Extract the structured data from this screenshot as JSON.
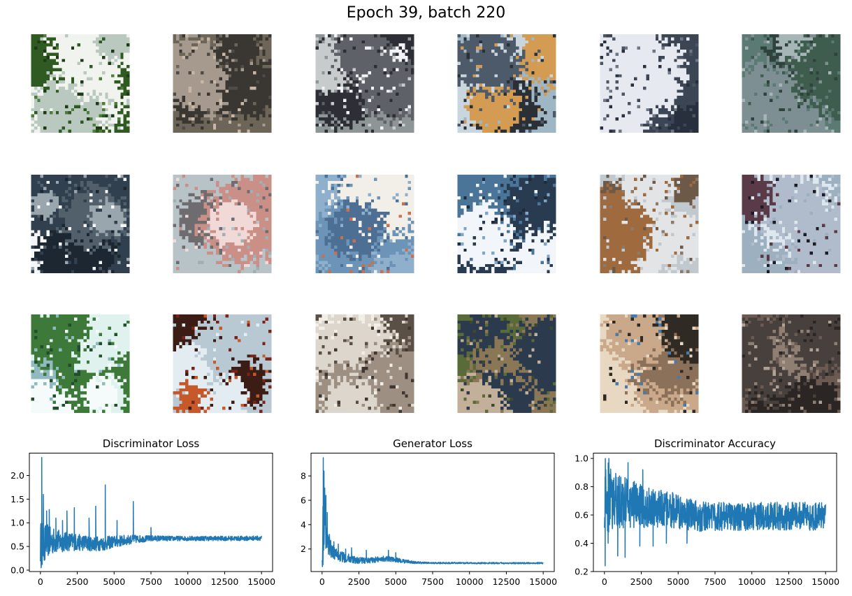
{
  "figure": {
    "title": "Epoch 39, batch 220",
    "grid": {
      "rows": 3,
      "cols": 6,
      "samples": [
        {
          "palette": [
            "#2f5a22",
            "#f1f4ee",
            "#4e7d3a",
            "#b9c9c0",
            "#1f3a17"
          ]
        },
        {
          "palette": [
            "#6d6557",
            "#3a3732",
            "#a59a8d",
            "#4f4c47",
            "#c8b7a5"
          ]
        },
        {
          "palette": [
            "#8e9597",
            "#f3f3f7",
            "#2e2f36",
            "#5f6168",
            "#c7cbcc"
          ]
        },
        {
          "palette": [
            "#9fb6c4",
            "#4c5a69",
            "#c9d6dd",
            "#2b3037",
            "#d39c52"
          ]
        },
        {
          "palette": [
            "#3b4554",
            "#27303c",
            "#6d7786",
            "#e6e9ef",
            "#4b5563"
          ]
        },
        {
          "palette": [
            "#5b7a73",
            "#3e5d4e",
            "#a6b6b7",
            "#7d8f93",
            "#2f433c"
          ]
        },
        {
          "palette": [
            "#30404e",
            "#f4f6f8",
            "#52606c",
            "#9aa6ae",
            "#1d2731"
          ]
        },
        {
          "palette": [
            "#b7c3c6",
            "#a1aeb2",
            "#f1d9d8",
            "#6f6c6f",
            "#ca8f86"
          ]
        },
        {
          "palette": [
            "#8fb0cc",
            "#6c94b8",
            "#f2efe9",
            "#c9704f",
            "#4c6f93"
          ]
        },
        {
          "palette": [
            "#4a7599",
            "#283b51",
            "#f2f5f9",
            "#7fa6c7",
            "#1f2b3a"
          ]
        },
        {
          "palette": [
            "#c1c9cf",
            "#8d7a69",
            "#6d5948",
            "#e2e4e6",
            "#a06a3f"
          ]
        },
        {
          "palette": [
            "#9cb0c0",
            "#1b1c25",
            "#b0bccb",
            "#dfe7ee",
            "#5a3a46"
          ]
        },
        {
          "palette": [
            "#3d7a3a",
            "#dff2ee",
            "#214f2b",
            "#90b9c0",
            "#f5fbfb"
          ]
        },
        {
          "palette": [
            "#b8c9d3",
            "#7a2418",
            "#e3ecf0",
            "#c6582a",
            "#3c1d16"
          ]
        },
        {
          "palette": [
            "#5b5045",
            "#ddd6cd",
            "#3f3730",
            "#9d8f82",
            "#f2eee8"
          ]
        },
        {
          "palette": [
            "#5a6b3a",
            "#8a7755",
            "#3f4a2c",
            "#c2b09a",
            "#2c3a4e"
          ]
        },
        {
          "palette": [
            "#e8d8c2",
            "#2f2a24",
            "#c9a98a",
            "#4a7aa8",
            "#8b7159"
          ]
        },
        {
          "palette": [
            "#6a5a52",
            "#2b2624",
            "#8f7f73",
            "#47403c",
            "#b0a195"
          ]
        }
      ]
    }
  },
  "chart_data": [
    {
      "type": "line",
      "title": "Discriminator Loss",
      "color": "#1f77b4",
      "xlim": [
        -750,
        15750
      ],
      "ylim": [
        -0.03,
        2.48
      ],
      "xticks": [
        0,
        2500,
        5000,
        7500,
        10000,
        12500,
        15000
      ],
      "xtick_labels": [
        "0",
        "2500",
        "5000",
        "7500",
        "10000",
        "12500",
        "15000"
      ],
      "yticks": [
        0.0,
        0.5,
        1.0,
        1.5,
        2.0
      ],
      "ytick_labels": [
        "0.0",
        "0.5",
        "1.0",
        "1.5",
        "2.0"
      ],
      "x": [
        0,
        100,
        150,
        300,
        500,
        700,
        900,
        1200,
        1500,
        1800,
        2000,
        2300,
        2500,
        3000,
        3500,
        3800,
        4000,
        4400,
        4600,
        5000,
        5500,
        6000,
        6300,
        6600,
        7000,
        7500,
        8000,
        9000,
        10000,
        11000,
        12000,
        13000,
        14000,
        15000
      ],
      "mid": [
        0.55,
        0.6,
        0.58,
        0.6,
        0.62,
        0.6,
        0.62,
        0.61,
        0.6,
        0.6,
        0.6,
        0.6,
        0.58,
        0.58,
        0.56,
        0.56,
        0.56,
        0.56,
        0.58,
        0.6,
        0.62,
        0.64,
        0.65,
        0.66,
        0.66,
        0.67,
        0.67,
        0.67,
        0.67,
        0.67,
        0.67,
        0.67,
        0.67,
        0.68
      ],
      "amplitude": [
        0.45,
        0.5,
        0.45,
        0.4,
        0.35,
        0.3,
        0.28,
        0.25,
        0.22,
        0.2,
        0.2,
        0.19,
        0.18,
        0.17,
        0.16,
        0.16,
        0.15,
        0.15,
        0.14,
        0.13,
        0.12,
        0.1,
        0.09,
        0.08,
        0.07,
        0.06,
        0.06,
        0.05,
        0.05,
        0.05,
        0.05,
        0.05,
        0.05,
        0.05
      ],
      "spikes": [
        [
          90,
          2.38
        ],
        [
          200,
          1.6
        ],
        [
          420,
          1.25
        ],
        [
          600,
          1.28
        ],
        [
          1050,
          1.1
        ],
        [
          1500,
          1.05
        ],
        [
          1800,
          1.25
        ],
        [
          2300,
          1.32
        ],
        [
          3300,
          1.1
        ],
        [
          3750,
          1.35
        ],
        [
          4400,
          1.8
        ],
        [
          5200,
          1.05
        ],
        [
          6300,
          1.45
        ],
        [
          7500,
          0.9
        ]
      ],
      "dips": [
        [
          50,
          0.05
        ],
        [
          120,
          0.12
        ],
        [
          300,
          0.22
        ]
      ]
    },
    {
      "type": "line",
      "title": "Generator Loss",
      "color": "#1f77b4",
      "xlim": [
        -750,
        15750
      ],
      "ylim": [
        0.15,
        9.9
      ],
      "xticks": [
        0,
        2500,
        5000,
        7500,
        10000,
        12500,
        15000
      ],
      "xtick_labels": [
        "0",
        "2500",
        "5000",
        "7500",
        "10000",
        "12500",
        "15000"
      ],
      "yticks": [
        2,
        4,
        6,
        8
      ],
      "ytick_labels": [
        "2",
        "4",
        "6",
        "8"
      ],
      "x": [
        0,
        100,
        150,
        300,
        500,
        700,
        900,
        1200,
        1500,
        1800,
        2000,
        2300,
        2500,
        3000,
        3500,
        3800,
        4000,
        4400,
        4600,
        5000,
        5500,
        6000,
        6300,
        6600,
        7000,
        7500,
        8000,
        9000,
        10000,
        11000,
        12000,
        13000,
        14000,
        15000
      ],
      "mid": [
        2.5,
        4.0,
        4.5,
        3.0,
        2.2,
        1.8,
        1.6,
        1.4,
        1.3,
        1.25,
        1.15,
        1.1,
        1.05,
        1.05,
        1.1,
        1.15,
        1.2,
        1.25,
        1.2,
        1.1,
        1.0,
        0.95,
        0.9,
        0.88,
        0.86,
        0.85,
        0.85,
        0.85,
        0.84,
        0.84,
        0.84,
        0.84,
        0.84,
        0.84
      ],
      "amplitude": [
        1.8,
        2.5,
        2.0,
        1.2,
        0.8,
        0.6,
        0.5,
        0.45,
        0.4,
        0.35,
        0.3,
        0.3,
        0.28,
        0.25,
        0.25,
        0.25,
        0.25,
        0.25,
        0.22,
        0.2,
        0.15,
        0.12,
        0.1,
        0.08,
        0.08,
        0.07,
        0.07,
        0.06,
        0.06,
        0.06,
        0.06,
        0.06,
        0.06,
        0.06
      ],
      "spikes": [
        [
          80,
          9.5
        ],
        [
          130,
          8.4
        ],
        [
          180,
          7.0
        ],
        [
          260,
          6.4
        ],
        [
          350,
          5.0
        ],
        [
          500,
          3.2
        ],
        [
          800,
          2.6
        ],
        [
          1100,
          2.4
        ],
        [
          1600,
          2.0
        ],
        [
          2000,
          2.1
        ],
        [
          3000,
          1.9
        ],
        [
          4500,
          1.9
        ],
        [
          5000,
          1.7
        ]
      ],
      "dips": [
        [
          20,
          0.55
        ],
        [
          60,
          0.7
        ]
      ]
    },
    {
      "type": "line",
      "title": "Discriminator Accuracy",
      "color": "#1f77b4",
      "xlim": [
        -750,
        15750
      ],
      "ylim": [
        0.2,
        1.04
      ],
      "xticks": [
        0,
        2500,
        5000,
        7500,
        10000,
        12500,
        15000
      ],
      "xtick_labels": [
        "0",
        "2500",
        "5000",
        "7500",
        "10000",
        "12500",
        "15000"
      ],
      "yticks": [
        0.2,
        0.4,
        0.6,
        0.8,
        1.0
      ],
      "ytick_labels": [
        "0.2",
        "0.4",
        "0.6",
        "0.8",
        "1.0"
      ],
      "x": [
        0,
        100,
        150,
        300,
        500,
        700,
        900,
        1200,
        1500,
        1800,
        2000,
        2300,
        2500,
        3000,
        3500,
        3800,
        4000,
        4400,
        4600,
        5000,
        5500,
        6000,
        6300,
        6600,
        7000,
        7500,
        8000,
        9000,
        10000,
        11000,
        12000,
        13000,
        14000,
        15000
      ],
      "mid": [
        0.72,
        0.72,
        0.72,
        0.71,
        0.7,
        0.7,
        0.69,
        0.69,
        0.68,
        0.68,
        0.67,
        0.67,
        0.66,
        0.65,
        0.65,
        0.64,
        0.64,
        0.63,
        0.63,
        0.62,
        0.61,
        0.6,
        0.6,
        0.59,
        0.59,
        0.59,
        0.59,
        0.59,
        0.59,
        0.59,
        0.59,
        0.59,
        0.59,
        0.59
      ],
      "amplitude": [
        0.27,
        0.27,
        0.27,
        0.25,
        0.22,
        0.2,
        0.2,
        0.19,
        0.18,
        0.18,
        0.17,
        0.16,
        0.16,
        0.15,
        0.14,
        0.14,
        0.13,
        0.13,
        0.13,
        0.12,
        0.12,
        0.11,
        0.11,
        0.11,
        0.1,
        0.1,
        0.1,
        0.1,
        0.1,
        0.1,
        0.1,
        0.1,
        0.1,
        0.1
      ],
      "spikes": [
        [
          60,
          1.0
        ],
        [
          300,
          1.0
        ],
        [
          1600,
          0.97
        ],
        [
          2600,
          0.92
        ]
      ],
      "dips": [
        [
          50,
          0.24
        ],
        [
          250,
          0.4
        ],
        [
          900,
          0.31
        ],
        [
          1400,
          0.3
        ],
        [
          2400,
          0.38
        ],
        [
          3300,
          0.38
        ],
        [
          4200,
          0.4
        ],
        [
          5600,
          0.4
        ]
      ]
    }
  ]
}
